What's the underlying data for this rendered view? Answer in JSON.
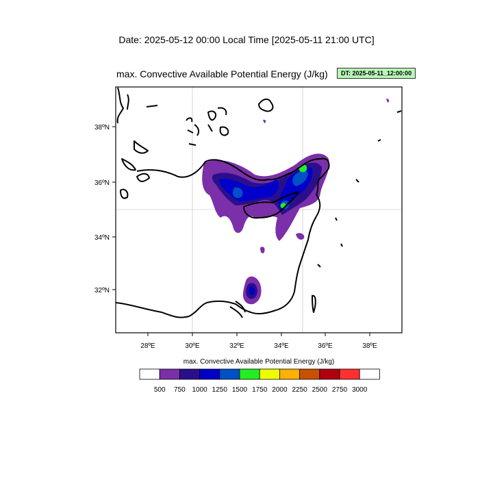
{
  "header": {
    "date_title": "Date: 2025-05-12  00:00 Local Time [2025-05-11  21:00 UTC]",
    "map_title": "max. Convective Available Potential Energy   (J/kg)",
    "dt_badge": "DT: 2025-05-11_12:00:00"
  },
  "map": {
    "lon_ticks": [
      "28ºE",
      "30ºE",
      "32ºE",
      "34ºE",
      "36ºE",
      "38ºE"
    ],
    "lat_ticks": [
      "38ºN",
      "36ºN",
      "34ºN",
      "32ºN"
    ],
    "gridlines": true
  },
  "colorbar": {
    "title": "max. Convective Available Potential Energy  (J/kg)",
    "levels": [
      "500",
      "750",
      "1000",
      "1250",
      "1500",
      "1750",
      "2000",
      "2250",
      "2500",
      "2750",
      "3000"
    ],
    "colors": [
      "#ffffff",
      "#7b2fa8",
      "#2a0f8c",
      "#0000c8",
      "#0050c8",
      "#22ee22",
      "#eeff00",
      "#ffb000",
      "#c85000",
      "#b00010",
      "#ff3030",
      "#ffffff"
    ]
  }
}
